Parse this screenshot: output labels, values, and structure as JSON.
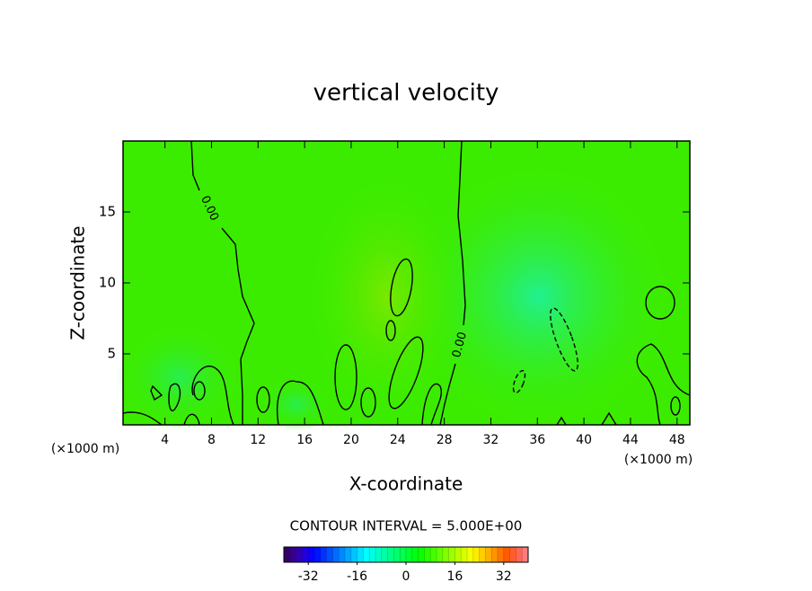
{
  "chart_data": {
    "type": "contour",
    "title": "vertical velocity",
    "x_label": "X-coordinate",
    "y_label": "Z-coordinate",
    "unit_label": "(×1000 m)",
    "xlim": [
      0.4,
      49.1
    ],
    "xticks": [
      4,
      8,
      12,
      16,
      20,
      24,
      28,
      32,
      36,
      40,
      44,
      48
    ],
    "ylim": [
      0,
      20
    ],
    "yticks": [
      5,
      10,
      15
    ],
    "contours": [
      {
        "level": 0,
        "label": "0.00",
        "style": "solid"
      },
      {
        "level": -5,
        "style": "dashed"
      }
    ],
    "contour_interval_label": "CONTOUR INTERVAL = 5.000E+00",
    "colorbar_lim": [
      -40,
      40
    ],
    "colorbar_ticks": [
      -32,
      -16,
      0,
      16,
      32
    ]
  }
}
